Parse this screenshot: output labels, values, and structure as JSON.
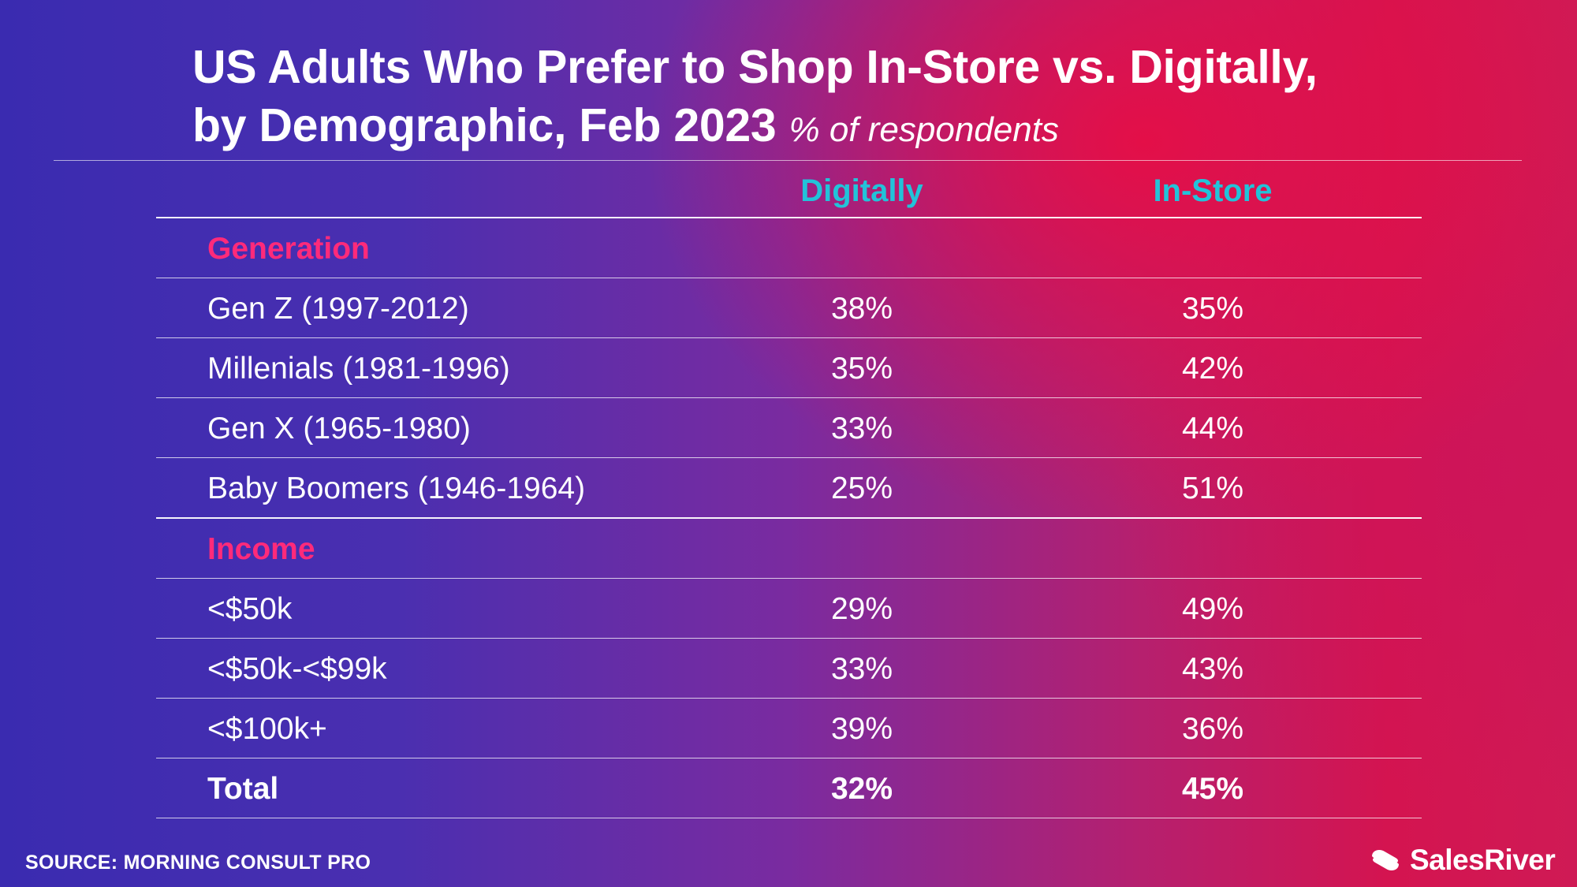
{
  "title": {
    "line1": "US Adults Who Prefer to Shop In-Store vs. Digitally,",
    "line2": "by Demographic, Feb 2023",
    "subtitle": "% of respondents"
  },
  "chart_data": {
    "type": "table",
    "columns": [
      "Digitally",
      "In-Store"
    ],
    "sections": [
      {
        "name": "Generation",
        "rows": [
          {
            "label": "Gen Z (1997-2012)",
            "digitally": "38%",
            "in_store": "35%"
          },
          {
            "label": "Millenials (1981-1996)",
            "digitally": "35%",
            "in_store": "42%"
          },
          {
            "label": "Gen X (1965-1980)",
            "digitally": "33%",
            "in_store": "44%"
          },
          {
            "label": "Baby Boomers (1946-1964)",
            "digitally": "25%",
            "in_store": "51%"
          }
        ]
      },
      {
        "name": "Income",
        "rows": [
          {
            "label": "<$50k",
            "digitally": "29%",
            "in_store": "49%"
          },
          {
            "label": "<$50k-<$99k",
            "digitally": "33%",
            "in_store": "43%"
          },
          {
            "label": "<$100k+",
            "digitally": "39%",
            "in_store": "36%"
          }
        ]
      }
    ],
    "total": {
      "label": "Total",
      "digitally": "32%",
      "in_store": "45%"
    }
  },
  "footer": {
    "source": "SOURCE: MORNING CONSULT PRO",
    "brand": "SalesRiver"
  },
  "colors": {
    "header": "#22c3d9",
    "section": "#ff2a7a"
  }
}
